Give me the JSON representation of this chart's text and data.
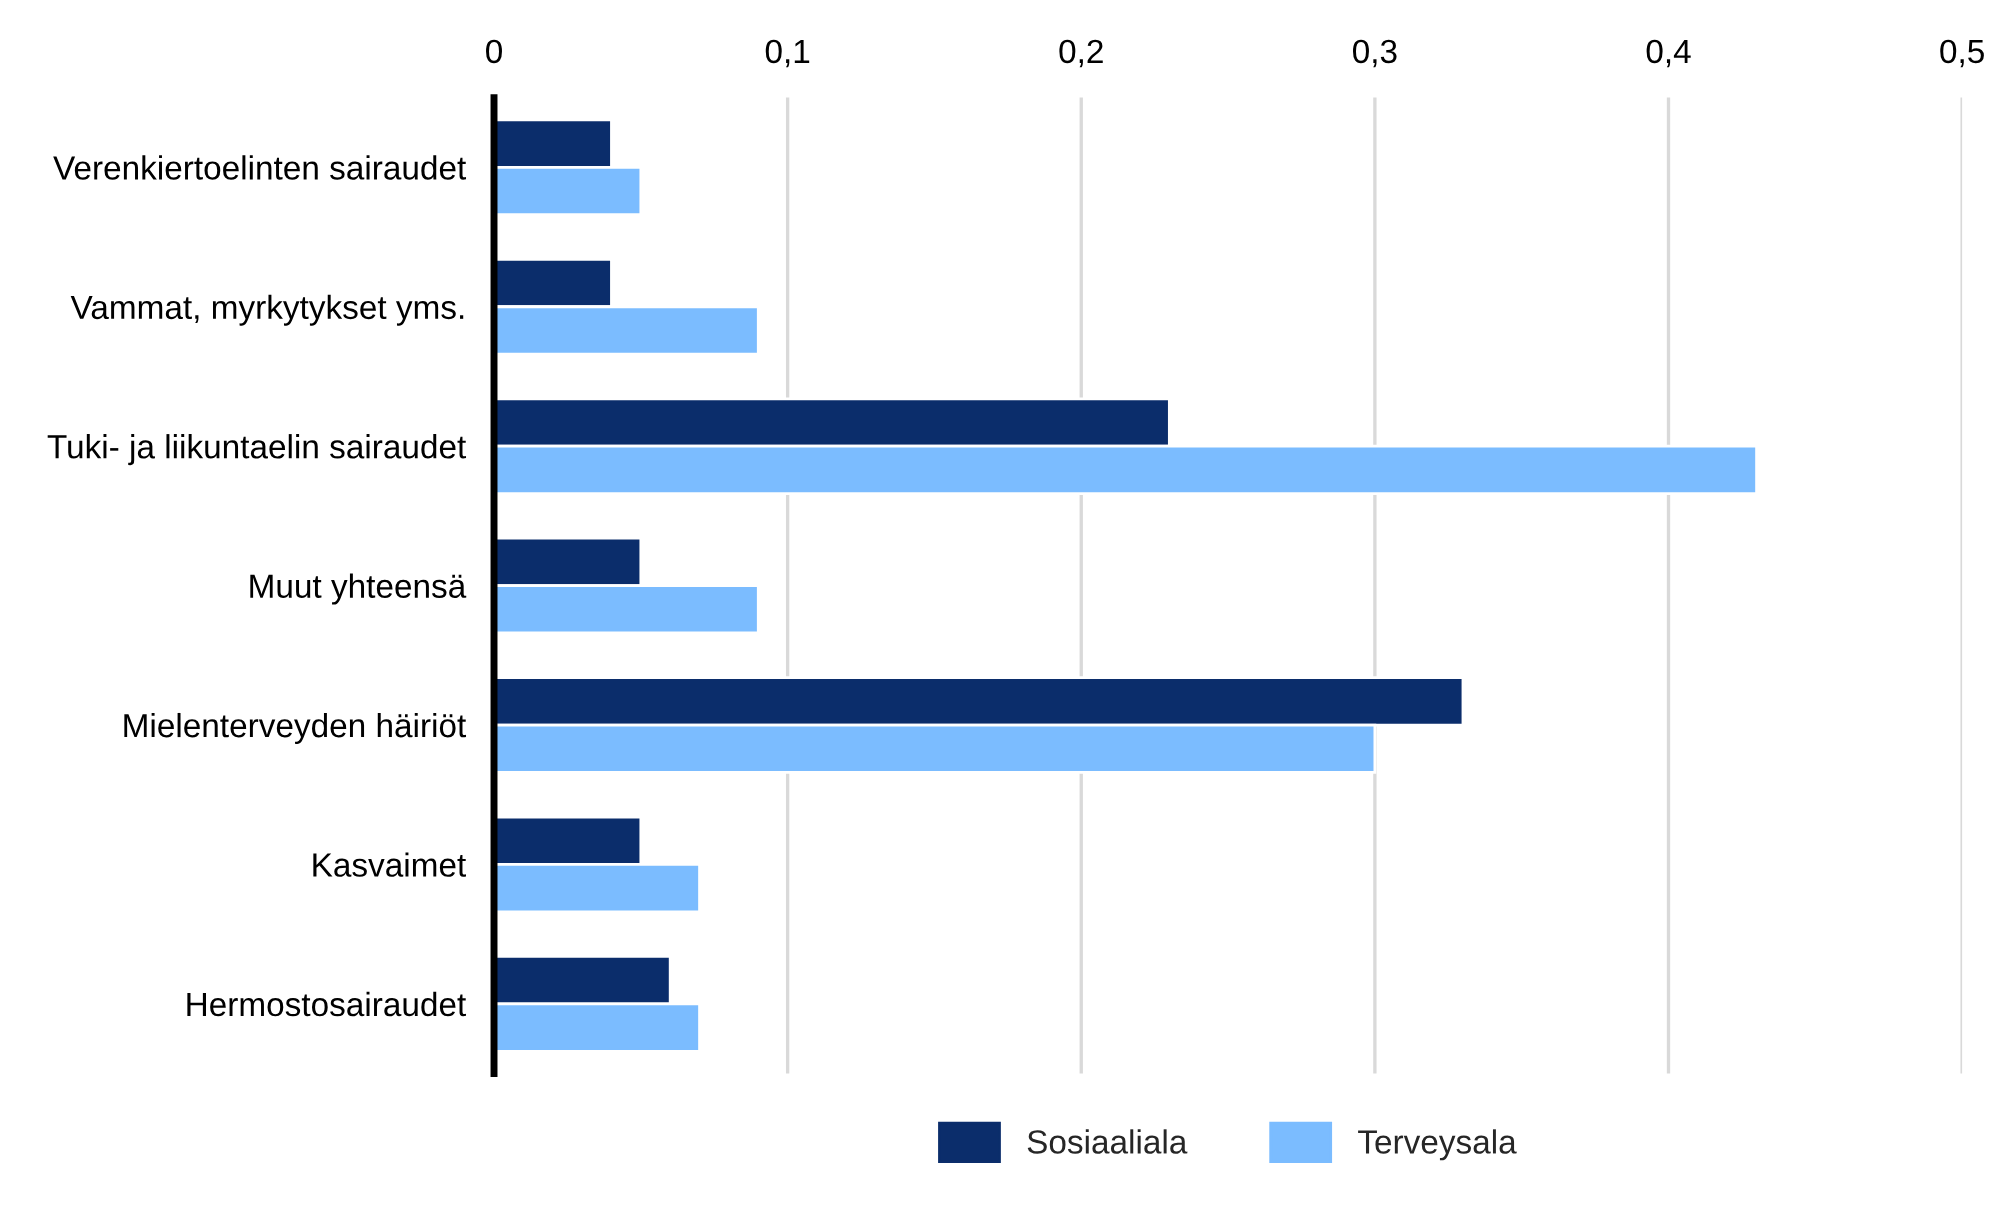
{
  "chart_data": {
    "type": "bar",
    "orientation": "horizontal",
    "categories": [
      "Verenkiertoelinten sairaudet",
      "Vammat, myrkytykset yms.",
      "Tuki- ja liikuntaelin sairaudet",
      "Muut yhteensä",
      "Mielenterveyden häiriöt",
      "Kasvaimet",
      "Hermostosairaudet"
    ],
    "series": [
      {
        "name": "Sosiaaliala",
        "color": "#0b2d6b",
        "values": [
          0.04,
          0.04,
          0.23,
          0.05,
          0.33,
          0.05,
          0.06
        ]
      },
      {
        "name": "Terveysala",
        "color": "#7bbcff",
        "values": [
          0.05,
          0.09,
          0.43,
          0.09,
          0.3,
          0.07,
          0.07
        ]
      }
    ],
    "xlim": [
      0,
      0.5
    ],
    "xticks": [
      0,
      {
        "value": 0.1,
        "label": "0,1"
      },
      {
        "value": 0.2,
        "label": "0,2"
      },
      {
        "value": 0.3,
        "label": "0,3"
      },
      {
        "value": 0.4,
        "label": "0,4"
      },
      {
        "value": 0.5,
        "label": "0,5"
      }
    ],
    "grid": "x",
    "legend": "bottom"
  }
}
